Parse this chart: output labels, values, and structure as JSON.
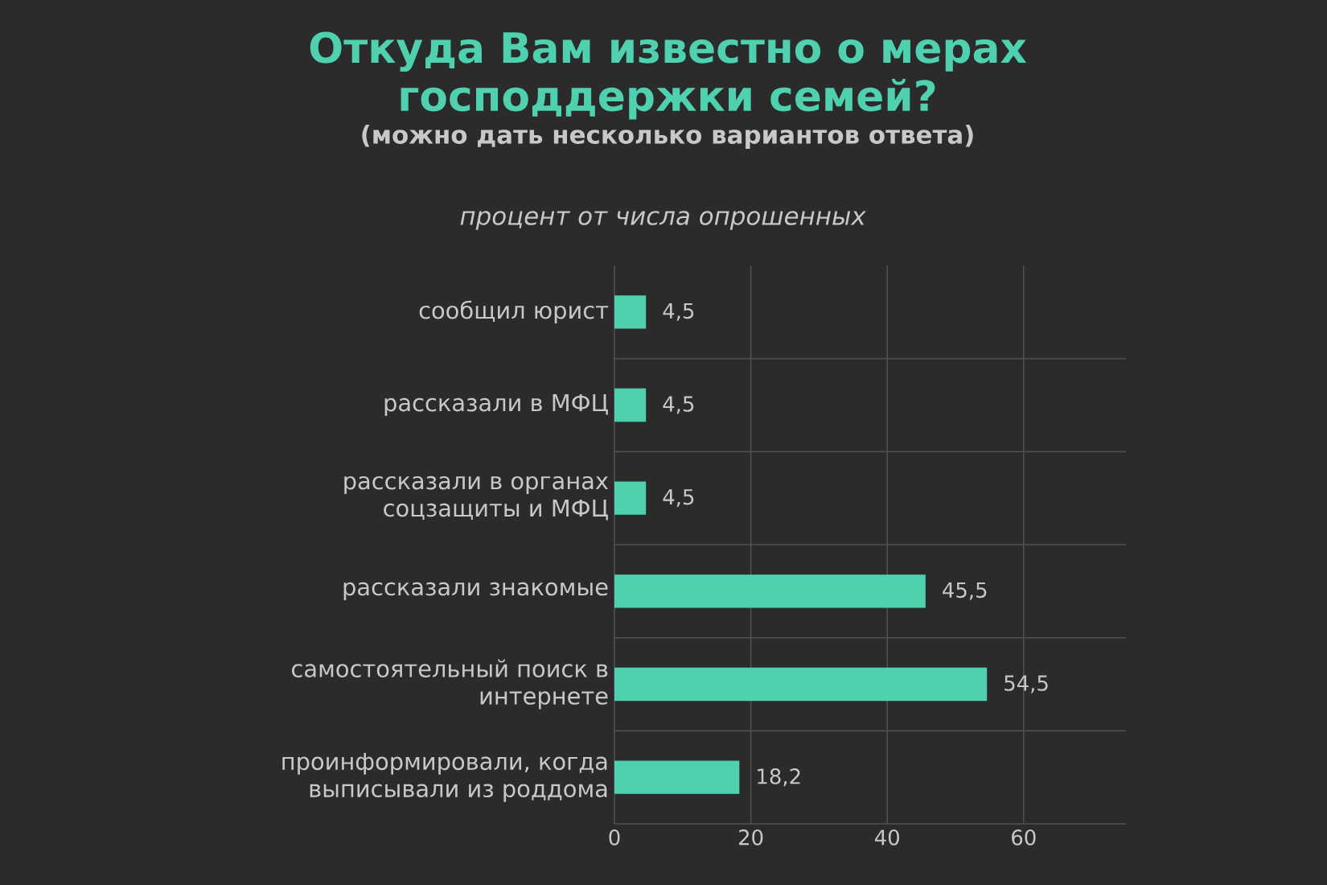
{
  "chart_data": {
    "type": "bar",
    "orientation": "horizontal",
    "title": "Откуда Вам известно о мерах господдержки семей?",
    "subtitle": "(можно дать несколько вариантов ответа)",
    "xlabel": "процент от числа опрошенных",
    "categories": [
      "сообщил юрист",
      "рассказали в МФЦ",
      "рассказали в органах соцзащиты и МФЦ",
      "рассказали знакомые",
      "самостоятельный поиск в интернете",
      "проинформировали, когда выписывали из роддома"
    ],
    "values": [
      4.5,
      4.5,
      4.5,
      45.5,
      54.5,
      18.2
    ],
    "value_labels": [
      "4,5",
      "4,5",
      "4,5",
      "45,5",
      "54,5",
      "18,2"
    ],
    "color": "#4fd1b0",
    "xlim": [
      0,
      75
    ],
    "xticks": [
      0,
      20,
      40,
      60
    ],
    "grid": true
  }
}
